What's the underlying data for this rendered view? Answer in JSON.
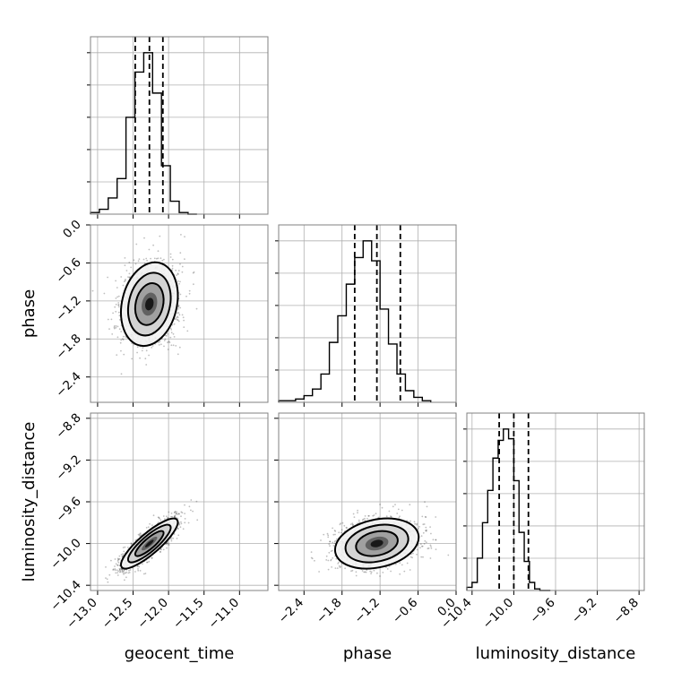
{
  "chart_data": {
    "type": "corner",
    "parameters": [
      "geocent_time",
      "phase",
      "luminosity_distance"
    ],
    "axes": {
      "geocent_time": {
        "range": [
          -13.1,
          -10.6
        ],
        "ticks": [
          -13.0,
          -12.5,
          -12.0,
          -11.5,
          -11.0
        ],
        "tick_labels": [
          "−13.0",
          "−12.5",
          "−12.0",
          "−11.5",
          "−11.0"
        ]
      },
      "phase": {
        "range": [
          -2.8,
          0.0
        ],
        "ticks": [
          -2.4,
          -1.8,
          -1.2,
          -0.6,
          0.0
        ],
        "tick_labels": [
          "−2.4",
          "−1.8",
          "−1.2",
          "−0.6",
          "0.0"
        ]
      },
      "luminosity_distance": {
        "range": [
          -10.45,
          -8.75
        ],
        "ticks": [
          -10.4,
          -10.0,
          -9.6,
          -9.2,
          -8.8
        ],
        "tick_labels": [
          "−10.4",
          "−10.0",
          "−9.6",
          "−9.2",
          "−8.8"
        ]
      }
    },
    "histograms": {
      "geocent_time": {
        "bin_edges": [
          -13.1,
          -12.975,
          -12.85,
          -12.725,
          -12.6,
          -12.475,
          -12.35,
          -12.225,
          -12.1,
          -11.975,
          -11.85,
          -11.725,
          -11.6
        ],
        "counts": [
          1,
          3,
          10,
          22,
          60,
          88,
          100,
          75,
          30,
          8,
          1,
          0
        ],
        "quantiles": [
          -12.47,
          -12.27,
          -12.08
        ]
      },
      "phase": {
        "bin_edges": [
          -2.8,
          -2.667,
          -2.533,
          -2.4,
          -2.267,
          -2.133,
          -2.0,
          -1.867,
          -1.733,
          -1.6,
          -1.467,
          -1.333,
          -1.2,
          -1.067,
          -0.933,
          -0.8,
          -0.667,
          -0.533,
          -0.4
        ],
        "counts": [
          1,
          1,
          2,
          4,
          8,
          17,
          36,
          52,
          71,
          87,
          97,
          85,
          56,
          35,
          17,
          7,
          3,
          1
        ],
        "quantiles": [
          -1.6,
          -1.25,
          -0.88
        ]
      },
      "luminosity_distance": {
        "bin_edges": [
          -10.45,
          -10.4,
          -10.35,
          -10.3,
          -10.25,
          -10.2,
          -10.15,
          -10.1,
          -10.05,
          -10.0,
          -9.95,
          -9.9,
          -9.85,
          -9.8,
          -9.75,
          -9.7,
          -9.65
        ],
        "counts": [
          2,
          5,
          20,
          42,
          62,
          82,
          93,
          100,
          94,
          68,
          36,
          18,
          5,
          1,
          0,
          0
        ],
        "quantiles": [
          -10.14,
          -10.0,
          -9.86
        ]
      }
    },
    "joint": [
      {
        "x": "geocent_time",
        "y": "phase",
        "center": [
          -12.27,
          -1.25
        ],
        "sigma": [
          0.2,
          0.33
        ],
        "rho": 0.2
      },
      {
        "x": "geocent_time",
        "y": "luminosity_distance",
        "center": [
          -12.27,
          -10.0
        ],
        "sigma": [
          0.2,
          0.12
        ],
        "rho": 0.85
      },
      {
        "x": "phase",
        "y": "luminosity_distance",
        "center": [
          -1.25,
          -10.0
        ],
        "sigma": [
          0.33,
          0.12
        ],
        "rho": 0.25
      }
    ],
    "grid": true,
    "title": ""
  }
}
